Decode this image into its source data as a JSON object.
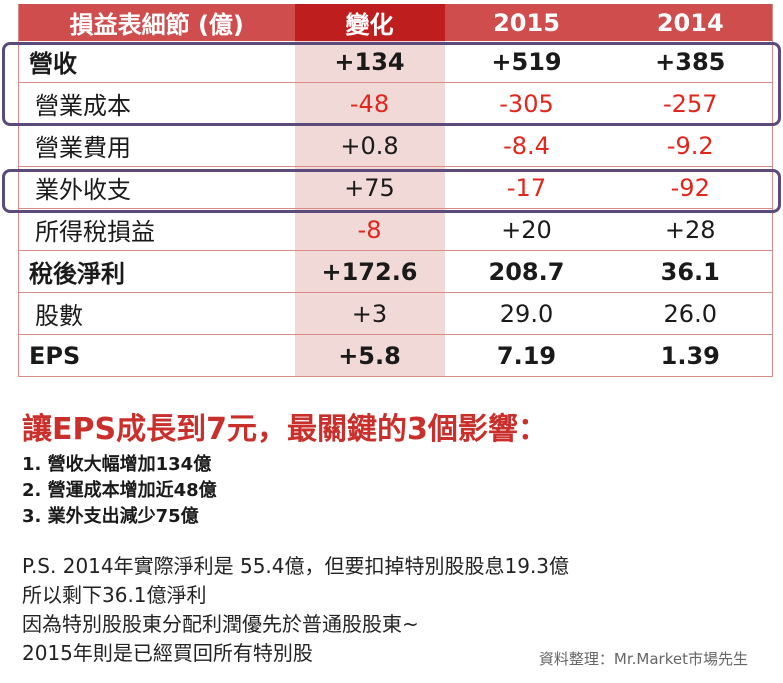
{
  "table": {
    "headers": [
      "損益表細節 (億)",
      "變化",
      "2015",
      "2014"
    ],
    "rows": [
      {
        "label": "營收",
        "change": "+134",
        "y2015": "+519",
        "y2014": "+385"
      },
      {
        "label": "營業成本",
        "change": "-48",
        "y2015": "-305",
        "y2014": "-257"
      },
      {
        "label": "營業費用",
        "change": "+0.8",
        "y2015": "-8.4",
        "y2014": "-9.2"
      },
      {
        "label": "業外收支",
        "change": "+75",
        "y2015": "-17",
        "y2014": "-92"
      },
      {
        "label": "所得稅損益",
        "change": "-8",
        "y2015": "+20",
        "y2014": "+28"
      },
      {
        "label": "稅後淨利",
        "change": "+172.6",
        "y2015": "208.7",
        "y2014": "36.1"
      },
      {
        "label": "股數",
        "change": "+3",
        "y2015": "29.0",
        "y2014": "26.0"
      },
      {
        "label": "EPS",
        "change": "+5.8",
        "y2015": "7.19",
        "y2014": "1.39"
      }
    ]
  },
  "colors": {
    "header_bg": "#cf4d4d",
    "header_highlight_bg": "#bf1e1e",
    "column_highlight_bg": "#f1d9d7",
    "negative_text": "#e0261d",
    "box_outline": "#5b4a7a",
    "heading_text": "#c9302c"
  },
  "heading": "讓EPS成長到7元，最關鍵的3個影響：",
  "points": [
    "1. 營收大幅增加134億",
    "2. 營運成本增加近48億",
    "3. 業外支出減少75億"
  ],
  "notes": [
    "P.S.  2014年實際淨利是 55.4億，但要扣掉特別股股息19.3億",
    "所以剩下36.1億淨利",
    "因為特別股股東分配利潤優先於普通股股東~",
    "2015年則是已經買回所有特別股"
  ],
  "credit": "資料整理：Mr.Market市場先生"
}
